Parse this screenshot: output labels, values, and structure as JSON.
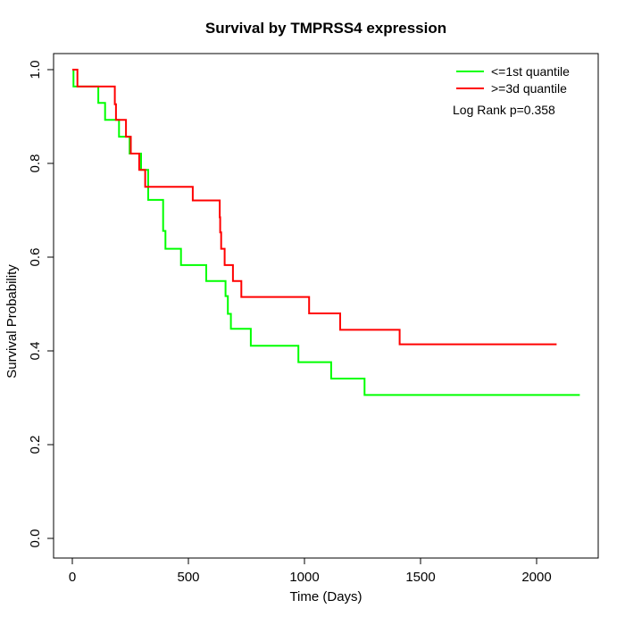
{
  "chart_data": {
    "type": "line",
    "subtype": "kaplan-meier-step",
    "title": "Survival by TMPRSS4 expression",
    "xlabel": "Time (Days)",
    "ylabel": "Survival Probability",
    "x_ticks": [
      0,
      500,
      1000,
      1500,
      2000
    ],
    "y_ticks": [
      0.0,
      0.2,
      0.4,
      0.6,
      0.8,
      1.0
    ],
    "xlim": [
      0,
      2200
    ],
    "ylim": [
      0.0,
      1.0
    ],
    "grid": "off",
    "legend_position": "top-right",
    "annotation": "Log Rank p=0.358",
    "series": [
      {
        "name": "<=1st quantile",
        "color": "#00ff00",
        "end_time": 2186,
        "steps": [
          [
            0,
            1.0
          ],
          [
            5,
            0.964
          ],
          [
            112,
            0.929
          ],
          [
            141,
            0.893
          ],
          [
            201,
            0.857
          ],
          [
            247,
            0.821
          ],
          [
            296,
            0.786
          ],
          [
            327,
            0.722
          ],
          [
            391,
            0.656
          ],
          [
            401,
            0.618
          ],
          [
            468,
            0.583
          ],
          [
            577,
            0.549
          ],
          [
            660,
            0.517
          ],
          [
            670,
            0.479
          ],
          [
            683,
            0.447
          ],
          [
            769,
            0.411
          ],
          [
            974,
            0.376
          ],
          [
            1115,
            0.341
          ],
          [
            1259,
            0.306
          ]
        ]
      },
      {
        "name": ">=3d quantile",
        "color": "#ff0000",
        "end_time": 2086,
        "steps": [
          [
            0,
            1.0
          ],
          [
            22,
            0.964
          ],
          [
            183,
            0.926
          ],
          [
            188,
            0.893
          ],
          [
            231,
            0.857
          ],
          [
            252,
            0.821
          ],
          [
            288,
            0.786
          ],
          [
            314,
            0.75
          ],
          [
            519,
            0.721
          ],
          [
            635,
            0.685
          ],
          [
            637,
            0.653
          ],
          [
            641,
            0.618
          ],
          [
            656,
            0.583
          ],
          [
            692,
            0.549
          ],
          [
            728,
            0.515
          ],
          [
            1020,
            0.48
          ],
          [
            1154,
            0.445
          ],
          [
            1410,
            0.414
          ]
        ]
      }
    ]
  }
}
